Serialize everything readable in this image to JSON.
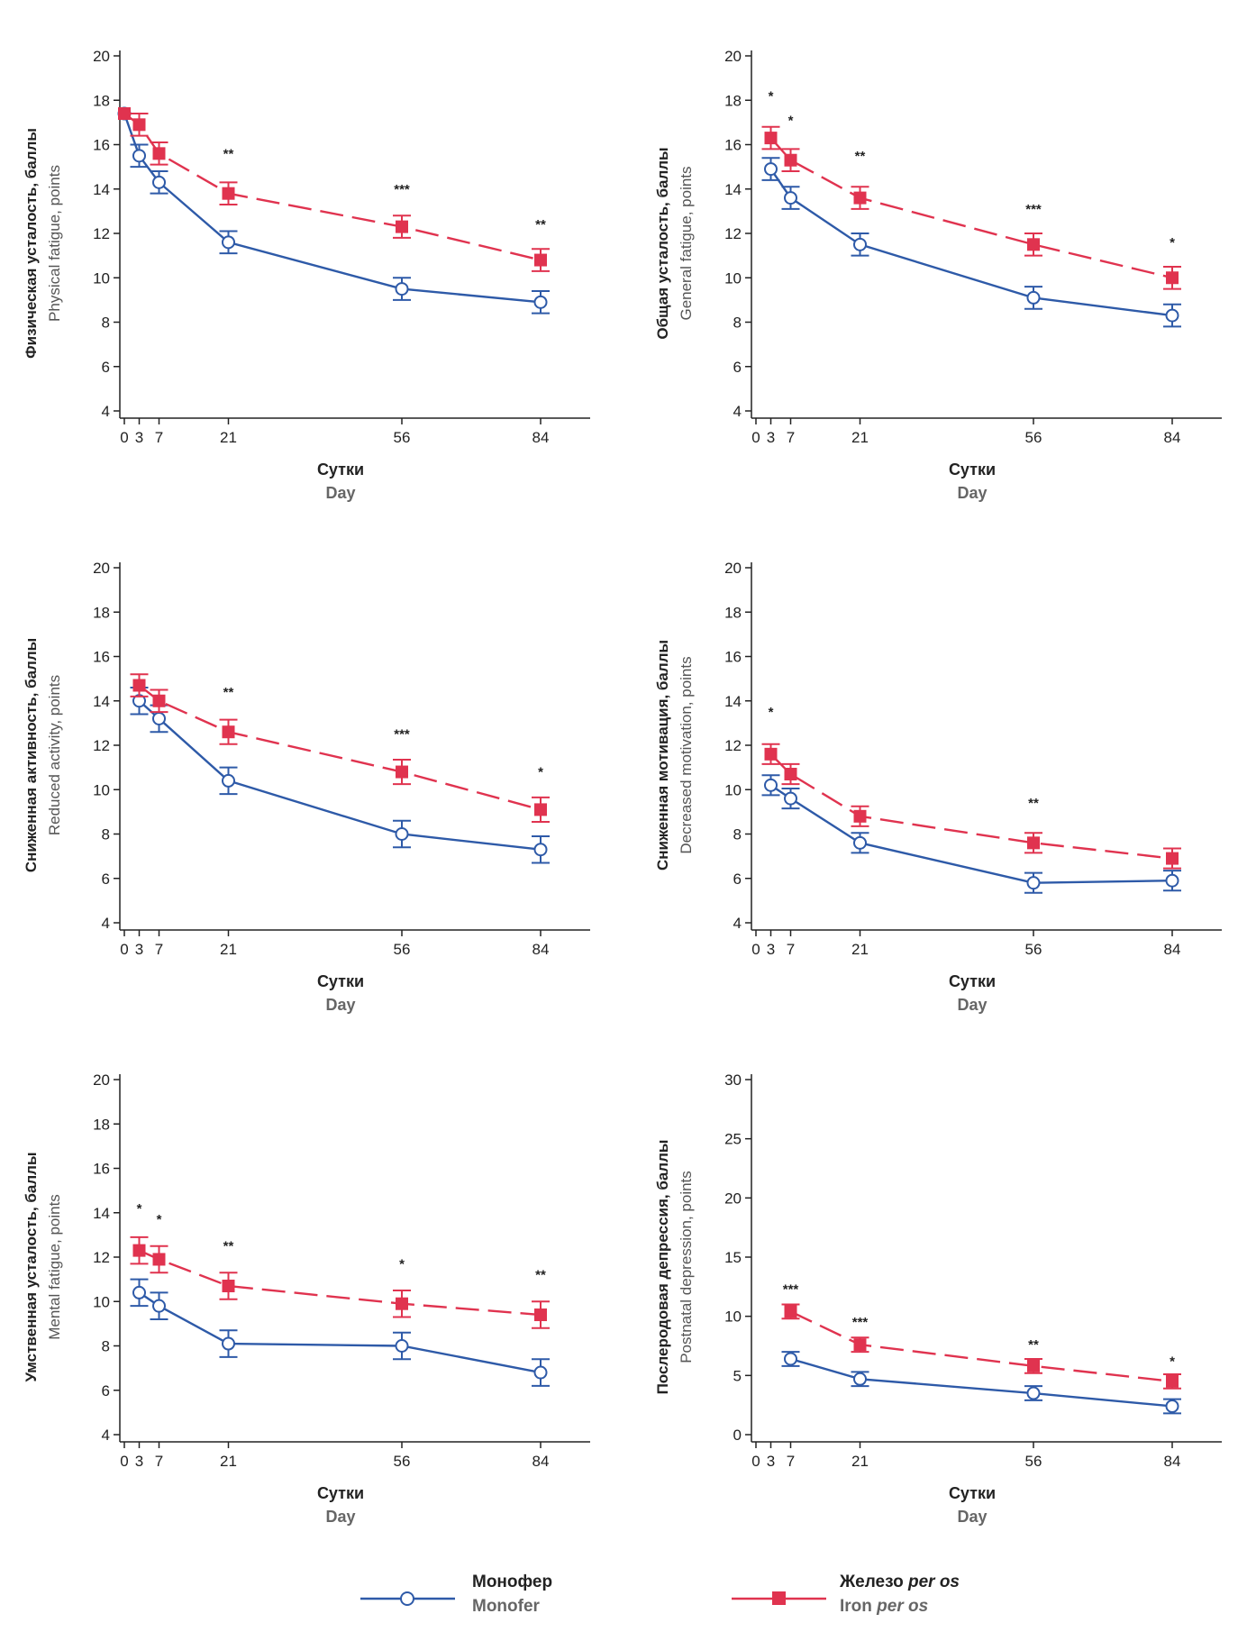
{
  "chart_data": [
    {
      "type": "line",
      "ylabel": "Физическая усталость, баллы",
      "ylabel_en": "Physical fatigue, points",
      "xlabel": "Сутки",
      "xlabel_en": "Day",
      "x_ticks": [
        0,
        3,
        7,
        21,
        56,
        84
      ],
      "y_ticks": [
        4,
        6,
        8,
        10,
        12,
        14,
        16,
        18,
        20
      ],
      "ylim": [
        4,
        20
      ],
      "series": [
        {
          "name": "Монофер",
          "x": [
            0,
            3,
            7,
            21,
            56,
            84
          ],
          "values": [
            17.4,
            15.5,
            14.3,
            11.6,
            9.5,
            8.9
          ],
          "err": [
            0,
            0.5,
            0.5,
            0.5,
            0.5,
            0.5
          ]
        },
        {
          "name": "Железо per os",
          "x": [
            0,
            3,
            7,
            21,
            56,
            84
          ],
          "values": [
            17.4,
            16.9,
            15.6,
            13.8,
            12.3,
            10.8
          ],
          "err": [
            0,
            0.5,
            0.5,
            0.5,
            0.5,
            0.5
          ]
        }
      ],
      "annotations": [
        {
          "x": 21,
          "y": 15.6,
          "text": "**"
        },
        {
          "x": 56,
          "y": 14.0,
          "text": "***"
        },
        {
          "x": 84,
          "y": 12.4,
          "text": "**"
        }
      ]
    },
    {
      "type": "line",
      "ylabel": "Общая усталость, баллы",
      "ylabel_en": "General fatigue, points",
      "xlabel": "Сутки",
      "xlabel_en": "Day",
      "x_ticks": [
        0,
        3,
        7,
        21,
        56,
        84
      ],
      "y_ticks": [
        4,
        6,
        8,
        10,
        12,
        14,
        16,
        18,
        20
      ],
      "ylim": [
        4,
        20
      ],
      "series": [
        {
          "name": "Монофер",
          "x": [
            3,
            7,
            21,
            56,
            84
          ],
          "values": [
            14.9,
            13.6,
            11.5,
            9.1,
            8.3
          ],
          "err": [
            0.5,
            0.5,
            0.5,
            0.5,
            0.5
          ]
        },
        {
          "name": "Железо per os",
          "x": [
            3,
            7,
            21,
            56,
            84
          ],
          "values": [
            16.3,
            15.3,
            13.6,
            11.5,
            10.0
          ],
          "err": [
            0.5,
            0.5,
            0.5,
            0.5,
            0.5
          ]
        }
      ],
      "annotations": [
        {
          "x": 3,
          "y": 18.2,
          "text": "*"
        },
        {
          "x": 7,
          "y": 17.1,
          "text": "*"
        },
        {
          "x": 21,
          "y": 15.5,
          "text": "**"
        },
        {
          "x": 56,
          "y": 13.1,
          "text": "***"
        },
        {
          "x": 84,
          "y": 11.6,
          "text": "*"
        }
      ]
    },
    {
      "type": "line",
      "ylabel": "Сниженная активность, баллы",
      "ylabel_en": "Reduced activity, points",
      "xlabel": "Сутки",
      "xlabel_en": "Day",
      "x_ticks": [
        0,
        3,
        7,
        21,
        56,
        84
      ],
      "y_ticks": [
        4,
        6,
        8,
        10,
        12,
        14,
        16,
        18,
        20
      ],
      "ylim": [
        4,
        20
      ],
      "series": [
        {
          "name": "Монофер",
          "x": [
            3,
            7,
            21,
            56,
            84
          ],
          "values": [
            14.0,
            13.2,
            10.4,
            8.0,
            7.3
          ],
          "err": [
            0.6,
            0.6,
            0.6,
            0.6,
            0.6
          ]
        },
        {
          "name": "Железо per os",
          "x": [
            3,
            7,
            21,
            56,
            84
          ],
          "values": [
            14.7,
            14.0,
            12.6,
            10.8,
            9.1
          ],
          "err": [
            0.5,
            0.5,
            0.55,
            0.55,
            0.55
          ]
        }
      ],
      "annotations": [
        {
          "x": 21,
          "y": 14.4,
          "text": "**"
        },
        {
          "x": 56,
          "y": 12.5,
          "text": "***"
        },
        {
          "x": 84,
          "y": 10.8,
          "text": "*"
        }
      ]
    },
    {
      "type": "line",
      "ylabel": "Сниженная мотивация, баллы",
      "ylabel_en": "Decreased motivation, points",
      "xlabel": "Сутки",
      "xlabel_en": "Day",
      "x_ticks": [
        0,
        3,
        7,
        21,
        56,
        84
      ],
      "y_ticks": [
        4,
        6,
        8,
        10,
        12,
        14,
        16,
        18,
        20
      ],
      "ylim": [
        4,
        20
      ],
      "series": [
        {
          "name": "Монофер",
          "x": [
            3,
            7,
            21,
            56,
            84
          ],
          "values": [
            10.2,
            9.6,
            7.6,
            5.8,
            5.9
          ],
          "err": [
            0.45,
            0.45,
            0.45,
            0.45,
            0.45
          ]
        },
        {
          "name": "Железо per os",
          "x": [
            3,
            7,
            21,
            56,
            84
          ],
          "values": [
            11.6,
            10.7,
            8.8,
            7.6,
            6.9
          ],
          "err": [
            0.45,
            0.45,
            0.45,
            0.45,
            0.45
          ]
        }
      ],
      "annotations": [
        {
          "x": 3,
          "y": 13.5,
          "text": "*"
        },
        {
          "x": 56,
          "y": 9.4,
          "text": "**"
        }
      ]
    },
    {
      "type": "line",
      "ylabel": "Умственная усталость, баллы",
      "ylabel_en": "Mental fatigue, points",
      "xlabel": "Сутки",
      "xlabel_en": "Day",
      "x_ticks": [
        0,
        3,
        7,
        21,
        56,
        84
      ],
      "y_ticks": [
        4,
        6,
        8,
        10,
        12,
        14,
        16,
        18,
        20
      ],
      "ylim": [
        4,
        20
      ],
      "series": [
        {
          "name": "Монофер",
          "x": [
            3,
            7,
            21,
            56,
            84
          ],
          "values": [
            10.4,
            9.8,
            8.1,
            8.0,
            6.8
          ],
          "err": [
            0.6,
            0.6,
            0.6,
            0.6,
            0.6
          ]
        },
        {
          "name": "Железо per os",
          "x": [
            3,
            7,
            21,
            56,
            84
          ],
          "values": [
            12.3,
            11.9,
            10.7,
            9.9,
            9.4
          ],
          "err": [
            0.6,
            0.6,
            0.6,
            0.6,
            0.6
          ]
        }
      ],
      "annotations": [
        {
          "x": 3,
          "y": 14.2,
          "text": "*"
        },
        {
          "x": 7,
          "y": 13.7,
          "text": "*"
        },
        {
          "x": 21,
          "y": 12.5,
          "text": "**"
        },
        {
          "x": 56,
          "y": 11.7,
          "text": "*"
        },
        {
          "x": 84,
          "y": 11.2,
          "text": "**"
        }
      ]
    },
    {
      "type": "line",
      "ylabel": "Послеродовая депрессия, баллы",
      "ylabel_en": "Postnatal depression, points",
      "xlabel": "Сутки",
      "xlabel_en": "Day",
      "x_ticks": [
        0,
        3,
        7,
        21,
        56,
        84
      ],
      "y_ticks": [
        0,
        5,
        10,
        15,
        20,
        25,
        30
      ],
      "ylim": [
        0,
        30
      ],
      "series": [
        {
          "name": "Монофер",
          "x": [
            7,
            21,
            56,
            84
          ],
          "values": [
            6.4,
            4.7,
            3.5,
            2.4
          ],
          "err": [
            0.6,
            0.6,
            0.6,
            0.6
          ]
        },
        {
          "name": "Железо per os",
          "x": [
            7,
            21,
            56,
            84
          ],
          "values": [
            10.4,
            7.6,
            5.8,
            4.5
          ],
          "err": [
            0.6,
            0.6,
            0.6,
            0.6
          ]
        }
      ],
      "annotations": [
        {
          "x": 7,
          "y": 12.3,
          "text": "***"
        },
        {
          "x": 21,
          "y": 9.5,
          "text": "***"
        },
        {
          "x": 56,
          "y": 7.6,
          "text": "**"
        },
        {
          "x": 84,
          "y": 6.2,
          "text": "*"
        }
      ]
    }
  ],
  "legend": {
    "series1_ru": "Монофер",
    "series1_en": "Monofer",
    "series2_ru_a": "Железо ",
    "series2_ru_b": "per os",
    "series2_en_a": "Iron ",
    "series2_en_b": "per os"
  },
  "colors": {
    "monofer": "#2e5aa8",
    "iron": "#e0334f",
    "axis": "#222222"
  }
}
